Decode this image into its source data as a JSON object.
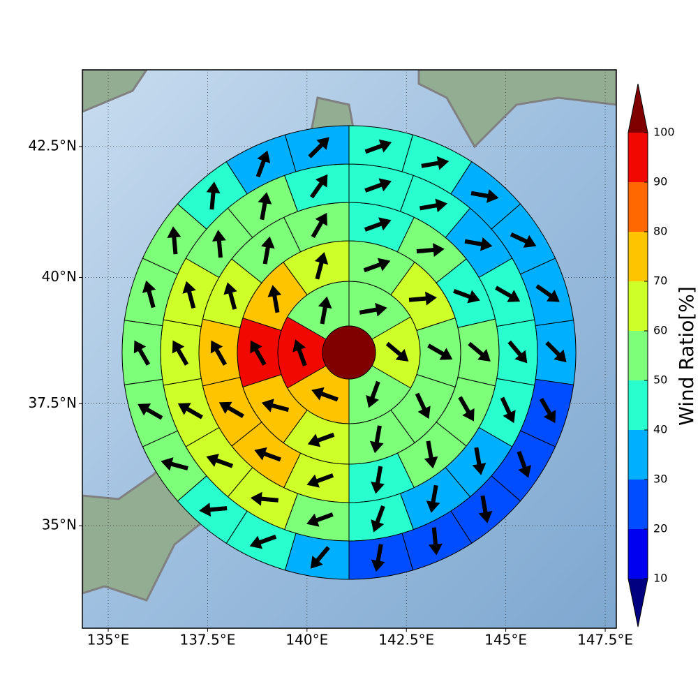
{
  "chart_data": {
    "type": "polar-cells",
    "projection": "mercator",
    "xlim": [
      134.35,
      147.78
    ],
    "ylim": [
      32.84,
      43.92
    ],
    "xticks": [
      {
        "value": 135,
        "label": "135°E"
      },
      {
        "value": 137.5,
        "label": "137.5°E"
      },
      {
        "value": 140,
        "label": "140°E"
      },
      {
        "value": 142.5,
        "label": "142.5°E"
      },
      {
        "value": 145,
        "label": "145°E"
      },
      {
        "value": 147.5,
        "label": "147.5°E"
      }
    ],
    "yticks": [
      {
        "value": 35,
        "label": "35°N"
      },
      {
        "value": 37.5,
        "label": "37.5°N"
      },
      {
        "value": 40,
        "label": "40°N"
      },
      {
        "value": 42.5,
        "label": "42.5°N"
      }
    ],
    "grid": true,
    "center_value": 105,
    "rings": [
      {
        "values": [
          55,
          65,
          55,
          75,
          95,
          55
        ],
        "directions": [
          80,
          130,
          200,
          290,
          340,
          10
        ]
      },
      {
        "values": [
          55,
          65,
          55,
          55,
          55,
          65,
          75,
          95,
          75,
          65
        ],
        "directions": [
          70,
          85,
          120,
          155,
          190,
          250,
          285,
          330,
          350,
          15
        ]
      },
      {
        "values": [
          45,
          55,
          45,
          55,
          55,
          55,
          45,
          65,
          75,
          75,
          75,
          65,
          55,
          55
        ],
        "directions": [
          70,
          85,
          110,
          130,
          150,
          170,
          190,
          250,
          290,
          300,
          330,
          345,
          10,
          30
        ]
      },
      {
        "values": [
          45,
          45,
          35,
          45,
          45,
          45,
          35,
          35,
          45,
          55,
          65,
          65,
          65,
          65,
          65,
          55,
          55,
          45
        ],
        "directions": [
          70,
          80,
          100,
          120,
          140,
          155,
          170,
          190,
          200,
          250,
          275,
          290,
          300,
          330,
          345,
          355,
          10,
          35
        ]
      },
      {
        "values": [
          45,
          45,
          35,
          35,
          35,
          35,
          25,
          25,
          25,
          25,
          25,
          35,
          45,
          45,
          55,
          55,
          55,
          55,
          55,
          45,
          35,
          35
        ],
        "directions": [
          70,
          80,
          100,
          115,
          125,
          135,
          150,
          160,
          170,
          175,
          190,
          220,
          250,
          265,
          285,
          300,
          330,
          345,
          355,
          5,
          20,
          45
        ]
      }
    ],
    "colorbar": {
      "label": "Wind Ratio[%]",
      "ticks": [
        10,
        20,
        30,
        40,
        50,
        60,
        70,
        80,
        90,
        100
      ],
      "colors": [
        "#000080",
        "#0000f1",
        "#004cff",
        "#00b0ff",
        "#29ffce",
        "#7dff7a",
        "#ceff29",
        "#ffc400",
        "#ff6800",
        "#f10800",
        "#800000"
      ]
    }
  }
}
